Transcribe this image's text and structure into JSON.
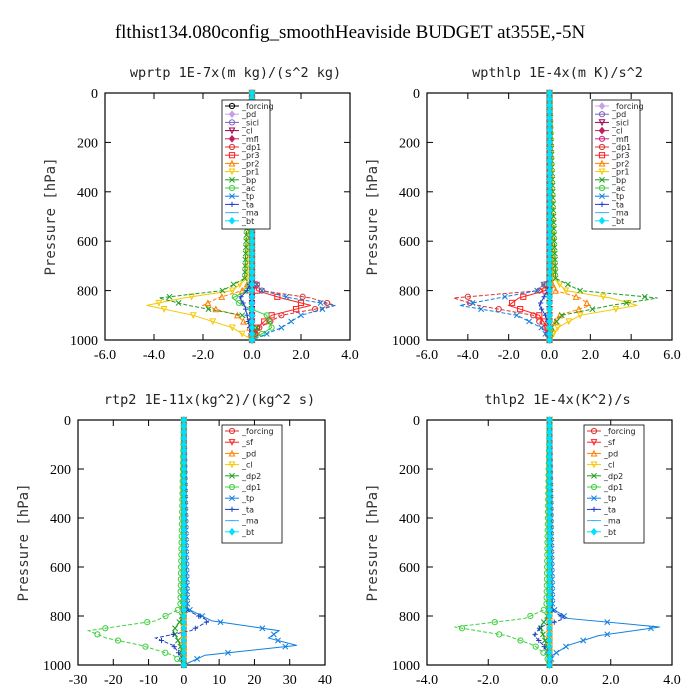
{
  "figure_title": "flthist134.080config_smoothHeaviside  BUDGET at355E,-5N",
  "chart_data": [
    {
      "type": "line",
      "title": "wprtp  1E-7x(m kg)/(s^2 kg)",
      "ylabel": "Pressure [hPa]",
      "xlim": [
        -6.0,
        4.0
      ],
      "ylim": [
        1000,
        0
      ],
      "xticks": [
        "-6.0",
        "-4.0",
        "-2.0",
        "0.0",
        "2.0",
        "4.0"
      ],
      "yticks": [
        "0",
        "200",
        "400",
        "600",
        "800",
        "1000"
      ],
      "p": [
        0,
        750,
        800,
        830,
        860,
        900,
        950,
        1000
      ],
      "series": [
        {
          "name": "_forcing",
          "color": "#000000",
          "marker": "circle",
          "values": [
            0,
            0,
            0,
            0,
            0,
            0,
            0,
            0
          ]
        },
        {
          "name": "_pd",
          "color": "#c8a0e8",
          "marker": "diamond",
          "values": [
            0,
            0,
            0,
            0,
            0,
            0,
            0,
            0
          ]
        },
        {
          "name": "_sicl",
          "color": "#8060c0",
          "marker": "circle",
          "values": [
            0,
            0,
            0,
            0,
            0,
            0,
            0,
            0
          ]
        },
        {
          "name": "_cl",
          "color": "#a00050",
          "marker": "triangle-down",
          "values": [
            0,
            0,
            0,
            0,
            0,
            0,
            0,
            0
          ]
        },
        {
          "name": "_mfl",
          "color": "#c02060",
          "marker": "diamond",
          "values": [
            0,
            0,
            0,
            0,
            0,
            0,
            0,
            0
          ]
        },
        {
          "name": "_dp1",
          "color": "#e03030",
          "marker": "circle",
          "values": [
            0,
            0,
            0.4,
            2.4,
            3.4,
            1.2,
            0.3,
            0
          ]
        },
        {
          "name": "_pr3",
          "color": "#ff2020",
          "marker": "square",
          "values": [
            0,
            0,
            0.2,
            1.2,
            2.4,
            0.8,
            0.2,
            0
          ]
        },
        {
          "name": "_pr2",
          "color": "#ff8000",
          "marker": "triangle-up",
          "values": [
            0,
            0,
            -0.4,
            -1.4,
            -2.0,
            -0.6,
            -0.1,
            0
          ]
        },
        {
          "name": "_pr1",
          "color": "#f5c800",
          "marker": "triangle-down",
          "values": [
            0,
            -0.2,
            -0.8,
            -2.8,
            -4.3,
            -2.4,
            -0.8,
            0
          ]
        },
        {
          "name": "_bp",
          "color": "#20a020",
          "marker": "x",
          "values": [
            0,
            -0.3,
            -1.2,
            -3.8,
            -2.6,
            -0.4,
            0.2,
            0
          ]
        },
        {
          "name": "_ac",
          "color": "#40d040",
          "marker": "circle",
          "values": [
            0,
            0,
            -0.2,
            -0.8,
            -0.4,
            0.6,
            0.8,
            0
          ]
        },
        {
          "name": "_tp",
          "color": "#1080e0",
          "marker": "x",
          "values": [
            0,
            0,
            0.4,
            1.6,
            3.4,
            2.0,
            1.2,
            0
          ]
        },
        {
          "name": "_ta",
          "color": "#2040c0",
          "marker": "plus",
          "values": [
            0,
            0,
            -0.2,
            -0.5,
            -0.3,
            -0.2,
            -0.1,
            0
          ]
        },
        {
          "name": "_ma",
          "color": "#40b0ff",
          "marker": "dash",
          "values": [
            0,
            0,
            0,
            0,
            0,
            0,
            0,
            0
          ]
        },
        {
          "name": "_bt",
          "color": "#00e0ff",
          "marker": "diamond",
          "values": [
            0,
            0,
            0,
            0,
            0,
            0,
            0,
            0
          ]
        }
      ]
    },
    {
      "type": "line",
      "title": "wpthlp  1E-4x(m K)/s^2",
      "ylabel": "Pressure [hPa]",
      "xlim": [
        -6.0,
        6.0
      ],
      "ylim": [
        1000,
        0
      ],
      "xticks": [
        "-6.0",
        "-4.0",
        "-2.0",
        "0.0",
        "2.0",
        "4.0",
        "6.0"
      ],
      "yticks": [
        "0",
        "200",
        "400",
        "600",
        "800",
        "1000"
      ],
      "p": [
        0,
        750,
        800,
        830,
        860,
        900,
        950,
        1000
      ],
      "series": [
        {
          "name": "_forcing",
          "color": "#c8a0e8",
          "marker": "diamond",
          "values": [
            0,
            0,
            0,
            0,
            0,
            0,
            0,
            0
          ]
        },
        {
          "name": "_pd",
          "color": "#8060c0",
          "marker": "circle",
          "values": [
            0,
            0,
            0,
            0,
            0,
            0,
            0,
            0
          ]
        },
        {
          "name": "_sicl",
          "color": "#a00050",
          "marker": "triangle-down",
          "values": [
            0,
            0,
            0,
            0,
            0,
            0,
            0,
            0
          ]
        },
        {
          "name": "_cl",
          "color": "#c02060",
          "marker": "diamond",
          "values": [
            0,
            0,
            0,
            0,
            0,
            0,
            0,
            0
          ]
        },
        {
          "name": "_mfl",
          "color": "#d02080",
          "marker": "circle",
          "values": [
            0,
            0,
            0,
            0,
            0,
            0,
            0,
            0
          ]
        },
        {
          "name": "_dp1",
          "color": "#e03030",
          "marker": "circle",
          "values": [
            0,
            0,
            -0.5,
            -4.7,
            -3.5,
            -0.8,
            -0.2,
            0
          ]
        },
        {
          "name": "_pr3",
          "color": "#ff2020",
          "marker": "square",
          "values": [
            0,
            0,
            -0.2,
            -1.5,
            -2.0,
            -0.5,
            -0.1,
            0
          ]
        },
        {
          "name": "_pr2",
          "color": "#ff8000",
          "marker": "triangle-up",
          "values": [
            0,
            0,
            0.3,
            1.5,
            2.0,
            0.5,
            0.1,
            0
          ]
        },
        {
          "name": "_pr1",
          "color": "#f5c800",
          "marker": "triangle-down",
          "values": [
            0,
            0.2,
            0.8,
            3.0,
            4.3,
            1.5,
            0.4,
            0
          ]
        },
        {
          "name": "_bp",
          "color": "#20a020",
          "marker": "x",
          "values": [
            0,
            0.3,
            1.5,
            5.3,
            3.0,
            0.6,
            0.1,
            0
          ]
        },
        {
          "name": "_ac",
          "color": "#40d040",
          "marker": "circle",
          "values": [
            0,
            0,
            0,
            0,
            0,
            0,
            0,
            0
          ]
        },
        {
          "name": "_tp",
          "color": "#1080e0",
          "marker": "x",
          "values": [
            0,
            0,
            -0.6,
            -2.5,
            -4.4,
            -1.6,
            -0.4,
            0
          ]
        },
        {
          "name": "_ta",
          "color": "#2040c0",
          "marker": "plus",
          "values": [
            0,
            0,
            -0.1,
            -0.3,
            -0.5,
            -0.2,
            0,
            0
          ]
        },
        {
          "name": "_ma",
          "color": "#40b0ff",
          "marker": "dash",
          "values": [
            0,
            0,
            0,
            0,
            0,
            0,
            0,
            0
          ]
        },
        {
          "name": "_bt",
          "color": "#00e0ff",
          "marker": "diamond",
          "values": [
            0,
            0,
            0,
            0,
            0,
            0,
            0,
            0
          ]
        }
      ]
    },
    {
      "type": "line",
      "title": "rtp2  1E-11x(kg^2)/(kg^2 s)",
      "ylabel": "Pressure [hPa]",
      "xlim": [
        -30,
        40
      ],
      "ylim": [
        1000,
        0
      ],
      "xticks": [
        "-30",
        "-20",
        "-10",
        "0",
        "10",
        "20",
        "30",
        "40"
      ],
      "yticks": [
        "0",
        "200",
        "400",
        "600",
        "800",
        "1000"
      ],
      "p": [
        0,
        770,
        820,
        860,
        890,
        920,
        960,
        1000
      ],
      "series": [
        {
          "name": "_forcing",
          "color": "#e03030",
          "marker": "circle",
          "values": [
            0,
            0,
            0,
            0,
            0,
            0,
            0,
            0
          ]
        },
        {
          "name": "_sf",
          "color": "#ff2020",
          "marker": "triangle-down",
          "values": [
            0,
            0,
            0,
            0,
            0,
            0,
            0,
            0
          ]
        },
        {
          "name": "_pd",
          "color": "#ff8000",
          "marker": "triangle-up",
          "values": [
            0,
            0,
            0,
            0,
            0,
            0,
            0,
            0
          ]
        },
        {
          "name": "_cl",
          "color": "#f5c800",
          "marker": "triangle-down",
          "values": [
            0,
            0,
            0,
            0,
            0,
            0,
            0,
            0
          ]
        },
        {
          "name": "_dp2",
          "color": "#20a020",
          "marker": "x",
          "values": [
            0,
            0,
            -1,
            -3,
            -2,
            -1,
            -0.5,
            0
          ]
        },
        {
          "name": "_dp1",
          "color": "#40d040",
          "marker": "circle",
          "values": [
            0,
            -1,
            -8,
            -27,
            -22,
            -12,
            -3,
            0
          ]
        },
        {
          "name": "_tp",
          "color": "#1080e0",
          "marker": "x",
          "values": [
            0,
            1,
            8,
            27,
            24,
            32,
            6,
            0
          ]
        },
        {
          "name": "_ta",
          "color": "#2040c0",
          "marker": "plus",
          "values": [
            0,
            0,
            7,
            2,
            -8,
            -3,
            -1,
            0
          ]
        },
        {
          "name": "_ma",
          "color": "#40b0ff",
          "marker": "dash",
          "values": [
            0,
            0,
            0,
            0,
            0,
            0,
            0,
            0
          ]
        },
        {
          "name": "_bt",
          "color": "#00e0ff",
          "marker": "diamond",
          "values": [
            0,
            0,
            0,
            0,
            0,
            0,
            0,
            0
          ]
        }
      ]
    },
    {
      "type": "line",
      "title": "thlp2  1E-4x(K^2)/s",
      "ylabel": "Pressure [hPa]",
      "xlim": [
        -4.0,
        4.0
      ],
      "ylim": [
        1000,
        0
      ],
      "xticks": [
        "-4.0",
        "-2.0",
        "0.0",
        "2.0",
        "4.0"
      ],
      "yticks": [
        "0",
        "200",
        "400",
        "600",
        "800",
        "1000"
      ],
      "p": [
        0,
        770,
        810,
        845,
        880,
        920,
        960,
        1000
      ],
      "series": [
        {
          "name": "_forcing",
          "color": "#e03030",
          "marker": "circle",
          "values": [
            0,
            0,
            0,
            0,
            0,
            0,
            0,
            0
          ]
        },
        {
          "name": "_sf",
          "color": "#ff2020",
          "marker": "triangle-down",
          "values": [
            0,
            0,
            0,
            0,
            0,
            0,
            0,
            0
          ]
        },
        {
          "name": "_pd",
          "color": "#ff8000",
          "marker": "triangle-up",
          "values": [
            0,
            0,
            0,
            0,
            0,
            0,
            0,
            0
          ]
        },
        {
          "name": "_cl",
          "color": "#f5c800",
          "marker": "triangle-down",
          "values": [
            0,
            0,
            0,
            0,
            0,
            0,
            0,
            0
          ]
        },
        {
          "name": "_dp2",
          "color": "#20a020",
          "marker": "x",
          "values": [
            0,
            0,
            -0.1,
            -0.3,
            -0.2,
            -0.1,
            0,
            0
          ]
        },
        {
          "name": "_dp1",
          "color": "#40d040",
          "marker": "circle",
          "values": [
            0,
            -0.1,
            -0.8,
            -3.1,
            -1.4,
            -0.5,
            -0.1,
            0
          ]
        },
        {
          "name": "_tp",
          "color": "#1080e0",
          "marker": "x",
          "values": [
            0,
            0.1,
            0.6,
            3.6,
            1.6,
            0.6,
            0.1,
            0
          ]
        },
        {
          "name": "_ta",
          "color": "#2040c0",
          "marker": "plus",
          "values": [
            0,
            0,
            0.5,
            -0.3,
            -0.5,
            -0.2,
            0,
            0
          ]
        },
        {
          "name": "_ma",
          "color": "#40b0ff",
          "marker": "dash",
          "values": [
            0,
            0,
            0,
            0,
            0,
            0,
            0,
            0
          ]
        },
        {
          "name": "_bt",
          "color": "#00e0ff",
          "marker": "diamond",
          "values": [
            0,
            0,
            0,
            0,
            0,
            0,
            0,
            0
          ]
        }
      ]
    }
  ]
}
